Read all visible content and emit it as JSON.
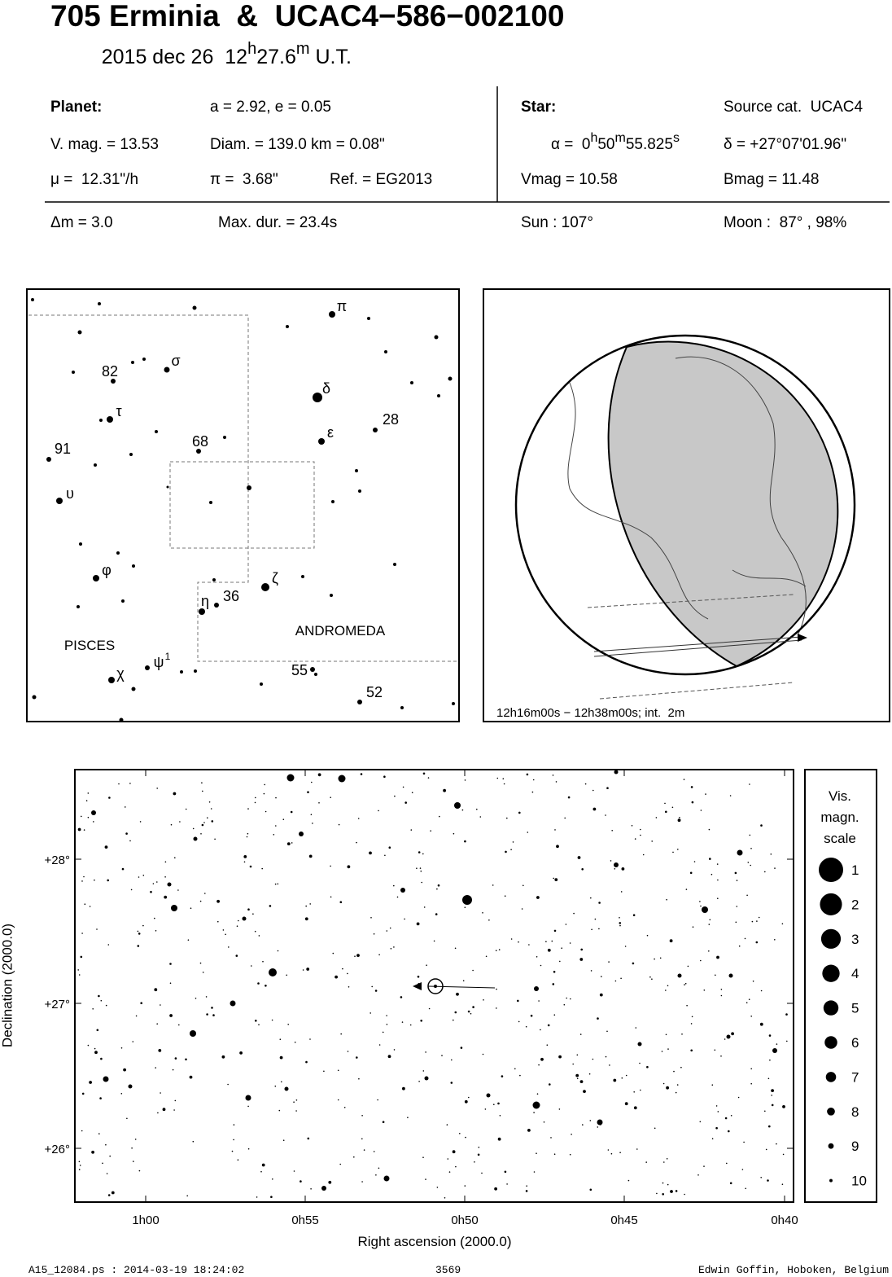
{
  "header": {
    "title": "705 Erminia  &  UCAC4−586−002100",
    "subtitle": [
      "2015 dec 26  12",
      "h",
      "27.6",
      "m",
      " U.T."
    ]
  },
  "planet": {
    "label": "Planet:",
    "orbit": "a = 2.92, e = 0.05",
    "vmag": "V. mag. = 13.53",
    "diam": "Diam. = 139.0 km = 0.08\"",
    "mu": "μ =  12.31\"/h",
    "pi": "π =  3.68\"",
    "ref": "Ref. = EG2013"
  },
  "star": {
    "label": "Star:",
    "source": "Source cat.  UCAC4",
    "alpha": [
      "α =  0",
      "h",
      "50",
      "m",
      "55.825",
      "s"
    ],
    "delta": "δ = +27°07'01.96\"",
    "vmag": "Vmag = 10.58",
    "bmag": "Bmag = 11.48"
  },
  "event": {
    "dm": "Δm = 3.0",
    "maxdur": "Max. dur. = 23.4s",
    "sun": "Sun : 107°",
    "moon": "Moon :  87° , 98%"
  },
  "finder": {
    "labels": [
      "π",
      "σ",
      "82",
      "δ",
      "τ",
      "28",
      "ε",
      "68",
      "91",
      "υ",
      "φ",
      "ζ",
      "36",
      "η",
      "ANDROMEDA",
      "PISCES",
      "ψ",
      "1",
      "χ",
      "55",
      "52"
    ]
  },
  "globe": {
    "caption": "12h16m00s − 12h38m00s; int.  2m"
  },
  "chart": {
    "yticks": [
      "+28°",
      "+27°",
      "+26°"
    ],
    "xticks": [
      "1h00",
      "0h55",
      "0h50",
      "0h45",
      "0h40"
    ],
    "xlabel": "Right ascension (2000.0)",
    "ylabel": "Declination (2000.0)"
  },
  "scale": {
    "title": [
      "Vis.",
      "magn.",
      "scale"
    ],
    "labels": [
      1,
      2,
      3,
      4,
      5,
      6,
      7,
      8,
      9,
      10
    ]
  },
  "footer": {
    "file": "A15_12084.ps : 2014-03-19 18:24:02",
    "number": "3569",
    "author": "Edwin Goffin, Hoboken, Belgium"
  }
}
